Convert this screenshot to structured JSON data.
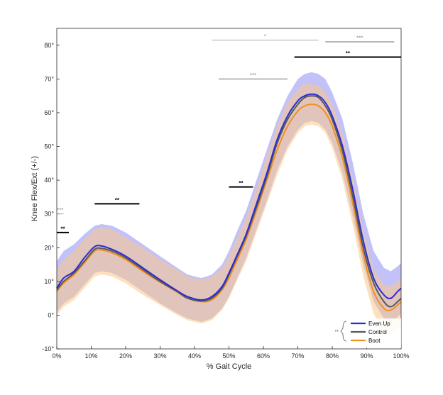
{
  "chart_data": {
    "type": "line",
    "xlabel": "% Gait Cycle",
    "ylabel": "Knee Flex/Ext (+/-)",
    "xlim": [
      0,
      100
    ],
    "ylim": [
      -10,
      85
    ],
    "x_ticks": [
      0,
      10,
      20,
      30,
      40,
      50,
      60,
      70,
      80,
      90,
      100
    ],
    "x_tick_labels": [
      "0%",
      "10%",
      "20%",
      "30%",
      "40%",
      "50%",
      "60%",
      "70%",
      "80%",
      "90%",
      "100%"
    ],
    "y_ticks": [
      -10,
      0,
      10,
      20,
      30,
      40,
      50,
      60,
      70,
      80
    ],
    "y_tick_labels": [
      "-10°",
      "0°",
      "10°",
      "20°",
      "30°",
      "40°",
      "50°",
      "60°",
      "70°",
      "80°"
    ],
    "grid": false,
    "legend": {
      "placement": "bottom-right",
      "entries": [
        "Even Up",
        "Control",
        "Boot"
      ],
      "bracket_label": "**"
    },
    "colors": {
      "Even Up": "#2b2bd6",
      "Control": "#595959",
      "Boot": "#f0901e",
      "even_up_band": "#8f8ff2",
      "boot_band": "#fbc88a",
      "sig_black": "#000000",
      "sig_gray": "#8c8c8c"
    },
    "series": [
      {
        "name": "Even Up",
        "x": [
          0,
          2,
          5,
          8,
          11,
          13,
          16,
          20,
          25,
          30,
          35,
          38,
          42,
          45,
          48,
          50,
          52,
          55,
          58,
          61,
          64,
          67,
          70,
          72,
          74,
          76,
          78,
          80,
          83,
          86,
          89,
          92,
          95,
          97,
          99,
          100
        ],
        "y": [
          8,
          11,
          13,
          17,
          20.3,
          20.5,
          19.5,
          17.5,
          14,
          10.5,
          7.2,
          5.5,
          4.5,
          5.5,
          8.5,
          12.5,
          17,
          24,
          33,
          42,
          52,
          59,
          63.5,
          65,
          65.5,
          65,
          63,
          59,
          50,
          37,
          22,
          11,
          6,
          5,
          7,
          8
        ]
      },
      {
        "name": "Control",
        "x": [
          0,
          2,
          5,
          8,
          11,
          13,
          16,
          20,
          25,
          30,
          35,
          38,
          42,
          45,
          48,
          50,
          52,
          55,
          58,
          61,
          64,
          67,
          70,
          72,
          74,
          76,
          78,
          80,
          83,
          86,
          89,
          92,
          95,
          97,
          99,
          100
        ],
        "y": [
          7.5,
          10,
          12.5,
          16,
          19.5,
          19.8,
          19,
          17,
          13.5,
          10,
          7,
          5,
          4.2,
          5,
          8,
          12,
          16.5,
          23.5,
          32,
          41,
          51,
          58,
          62.5,
          64.5,
          65,
          64.5,
          62,
          58,
          48.5,
          35,
          20,
          9.5,
          4,
          2.5,
          4,
          5
        ]
      },
      {
        "name": "Boot",
        "x": [
          0,
          2,
          5,
          8,
          11,
          13,
          16,
          20,
          25,
          30,
          35,
          38,
          42,
          45,
          48,
          50,
          52,
          55,
          58,
          61,
          64,
          67,
          70,
          72,
          74,
          76,
          78,
          80,
          83,
          86,
          89,
          92,
          95,
          97,
          99,
          100
        ],
        "y": [
          7,
          9.5,
          12,
          15.5,
          19,
          19.3,
          18.5,
          16.5,
          13,
          9.8,
          6.8,
          5,
          4,
          4.5,
          7.5,
          11,
          15.5,
          22.5,
          31,
          40,
          49,
          56,
          60.5,
          62,
          62.5,
          62,
          60,
          56,
          46.5,
          33,
          18,
          7,
          2,
          1.5,
          3,
          4
        ]
      }
    ],
    "bands": [
      {
        "series": "Even Up",
        "x": [
          0,
          2,
          5,
          8,
          11,
          13,
          16,
          20,
          25,
          30,
          35,
          38,
          42,
          45,
          48,
          50,
          52,
          55,
          58,
          61,
          64,
          67,
          70,
          72,
          74,
          76,
          78,
          80,
          83,
          86,
          89,
          92,
          95,
          97,
          99,
          100
        ],
        "lower": [
          1,
          3.5,
          5.5,
          9,
          12.5,
          13,
          12.5,
          10.5,
          7,
          3.5,
          0.5,
          -1,
          -2,
          -1,
          2,
          5.5,
          10,
          17,
          25.5,
          34,
          43,
          50,
          55,
          57,
          57.5,
          57,
          55,
          51,
          42,
          29,
          15,
          4,
          -1,
          -2.5,
          -0.5,
          0.5
        ],
        "upper": [
          16,
          19,
          21,
          24,
          26.5,
          27,
          26.5,
          24.5,
          21,
          17.5,
          14,
          12,
          11,
          12,
          15,
          19,
          24,
          31,
          40,
          49,
          58,
          65,
          70,
          71.5,
          72,
          71.5,
          70,
          66,
          58,
          45,
          30,
          19,
          14,
          13,
          14.5,
          15.5
        ]
      },
      {
        "series": "Boot",
        "x": [
          0,
          2,
          5,
          8,
          11,
          13,
          16,
          20,
          25,
          30,
          35,
          38,
          42,
          45,
          48,
          50,
          52,
          55,
          58,
          61,
          64,
          67,
          70,
          72,
          74,
          76,
          78,
          80,
          83,
          86,
          89,
          92,
          95,
          97,
          99,
          100
        ],
        "lower": [
          0,
          2.5,
          4.5,
          8,
          11.5,
          12,
          11.5,
          9.5,
          6,
          3,
          0,
          -1.5,
          -2.5,
          -1.5,
          1.5,
          5,
          9.5,
          16,
          24.5,
          33,
          41.5,
          49,
          54,
          56,
          56.5,
          56,
          54,
          49.5,
          40,
          26.5,
          11.5,
          0.5,
          -5,
          -6,
          -4,
          -3
        ],
        "upper": [
          13.5,
          16.5,
          19,
          22.5,
          25.5,
          26,
          25.5,
          23,
          20,
          16.5,
          13.5,
          11.5,
          10.5,
          11.5,
          14,
          17.5,
          22,
          29,
          37.5,
          47,
          56,
          63,
          67,
          68.5,
          68.5,
          68,
          66,
          62.5,
          53.5,
          40,
          25,
          13.5,
          9,
          8.5,
          10,
          11
        ]
      }
    ],
    "significance_bars": [
      {
        "x_start": 45,
        "x_end": 76,
        "y": 81.5,
        "label": "*",
        "color": "gray",
        "weight": "thin"
      },
      {
        "x_start": 78,
        "x_end": 98,
        "y": 81,
        "label": "***",
        "color": "gray",
        "weight": "medium"
      },
      {
        "x_start": 69,
        "x_end": 100,
        "y": 76.5,
        "label": "**",
        "color": "black",
        "weight": "thick"
      },
      {
        "x_start": 47,
        "x_end": 67,
        "y": 70,
        "label": "***",
        "color": "gray",
        "weight": "medium"
      },
      {
        "x_start": 50,
        "x_end": 57,
        "y": 38,
        "label": "**",
        "color": "black",
        "weight": "thick"
      },
      {
        "x_start": 11,
        "x_end": 24,
        "y": 33,
        "label": "**",
        "color": "black",
        "weight": "thick"
      },
      {
        "x_start": 0,
        "x_end": 2,
        "y": 30,
        "label": "***",
        "color": "gray",
        "weight": "thin"
      },
      {
        "x_start": 0,
        "x_end": 3.5,
        "y": 24.5,
        "label": "**",
        "color": "black",
        "weight": "thick"
      }
    ]
  }
}
